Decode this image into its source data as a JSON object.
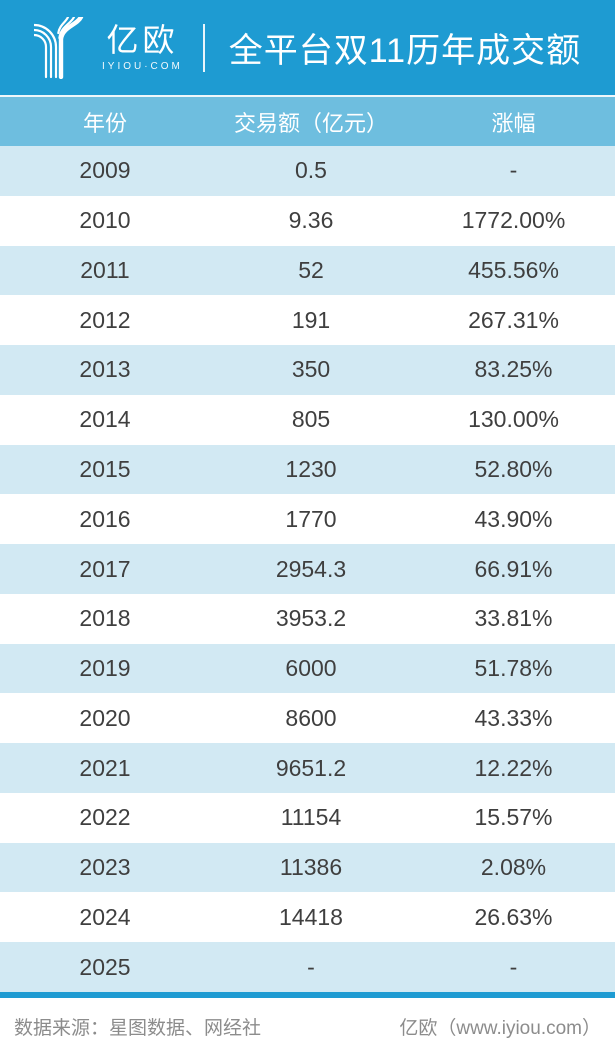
{
  "header": {
    "brand_name": "亿欧",
    "brand_domain": "IYIOU·COM",
    "title": "全平台双11历年成交额"
  },
  "table": {
    "columns": [
      "年份",
      "交易额（亿元）",
      "涨幅"
    ],
    "rows": [
      [
        "2009",
        "0.5",
        "-"
      ],
      [
        "2010",
        "9.36",
        "1772.00%"
      ],
      [
        "2011",
        "52",
        "455.56%"
      ],
      [
        "2012",
        "191",
        "267.31%"
      ],
      [
        "2013",
        "350",
        "83.25%"
      ],
      [
        "2014",
        "805",
        "130.00%"
      ],
      [
        "2015",
        "1230",
        "52.80%"
      ],
      [
        "2016",
        "1770",
        "43.90%"
      ],
      [
        "2017",
        "2954.3",
        "66.91%"
      ],
      [
        "2018",
        "3953.2",
        "33.81%"
      ],
      [
        "2019",
        "6000",
        "51.78%"
      ],
      [
        "2020",
        "8600",
        "43.33%"
      ],
      [
        "2021",
        "9651.2",
        "12.22%"
      ],
      [
        "2022",
        "11154",
        "15.57%"
      ],
      [
        "2023",
        "11386",
        "2.08%"
      ],
      [
        "2024",
        "14418",
        "26.63%"
      ],
      [
        "2025",
        "-",
        "-"
      ]
    ]
  },
  "footer": {
    "source": "数据来源：星图数据、网经社",
    "credit": "亿欧（www.iyiou.com）"
  },
  "colors": {
    "header_blue": "#1E9BD2",
    "band_blue": "#6EBEDF",
    "row_light": "#D2E9F3",
    "row_white": "#FFFFFF",
    "text_dark": "#3F3F3F",
    "text_gray": "#8C8C8C"
  },
  "chart_data": {
    "type": "table",
    "title": "全平台双11历年成交额",
    "columns": [
      "年份",
      "交易额（亿元）",
      "涨幅"
    ],
    "years": [
      2009,
      2010,
      2011,
      2012,
      2013,
      2014,
      2015,
      2016,
      2017,
      2018,
      2019,
      2020,
      2021,
      2022,
      2023,
      2024,
      2025
    ],
    "gmv_yi_yuan": [
      0.5,
      9.36,
      52,
      191,
      350,
      805,
      1230,
      1770,
      2954.3,
      3953.2,
      6000,
      8600,
      9651.2,
      11154,
      11386,
      14418,
      null
    ],
    "yoy_growth_pct": [
      null,
      1772.0,
      455.56,
      267.31,
      83.25,
      130.0,
      52.8,
      43.9,
      66.91,
      33.81,
      51.78,
      43.33,
      12.22,
      15.57,
      2.08,
      26.63,
      null
    ]
  }
}
